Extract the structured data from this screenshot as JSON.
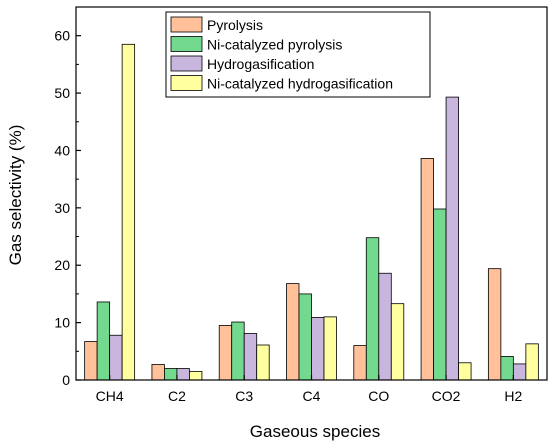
{
  "chart_data": {
    "type": "bar",
    "title": "",
    "xlabel": "Gaseous species",
    "ylabel": "Gas selectivity (%)",
    "ylim": [
      0,
      65
    ],
    "yticks": [
      0,
      10,
      20,
      30,
      40,
      50,
      60
    ],
    "categories": [
      "CH4",
      "C2",
      "C3",
      "C4",
      "CO",
      "CO2",
      "H2"
    ],
    "grid": false,
    "legend_position": "top-center",
    "series": [
      {
        "name": "Pyrolysis",
        "color": "#FFC09A",
        "values": [
          6.7,
          2.7,
          9.5,
          16.8,
          6.0,
          38.6,
          19.4
        ]
      },
      {
        "name": "Ni-catalyzed pyrolysis",
        "color": "#72D98F",
        "values": [
          13.6,
          2.0,
          10.1,
          15.0,
          24.8,
          29.8,
          4.1
        ]
      },
      {
        "name": "Hydrogasification",
        "color": "#C9B6DE",
        "values": [
          7.8,
          2.0,
          8.1,
          10.9,
          18.6,
          49.3,
          2.8
        ]
      },
      {
        "name": "Ni-catalyzed hydrogasification",
        "color": "#FFFFA0",
        "values": [
          58.5,
          1.5,
          6.1,
          11.0,
          13.3,
          3.0,
          6.3
        ]
      }
    ]
  }
}
